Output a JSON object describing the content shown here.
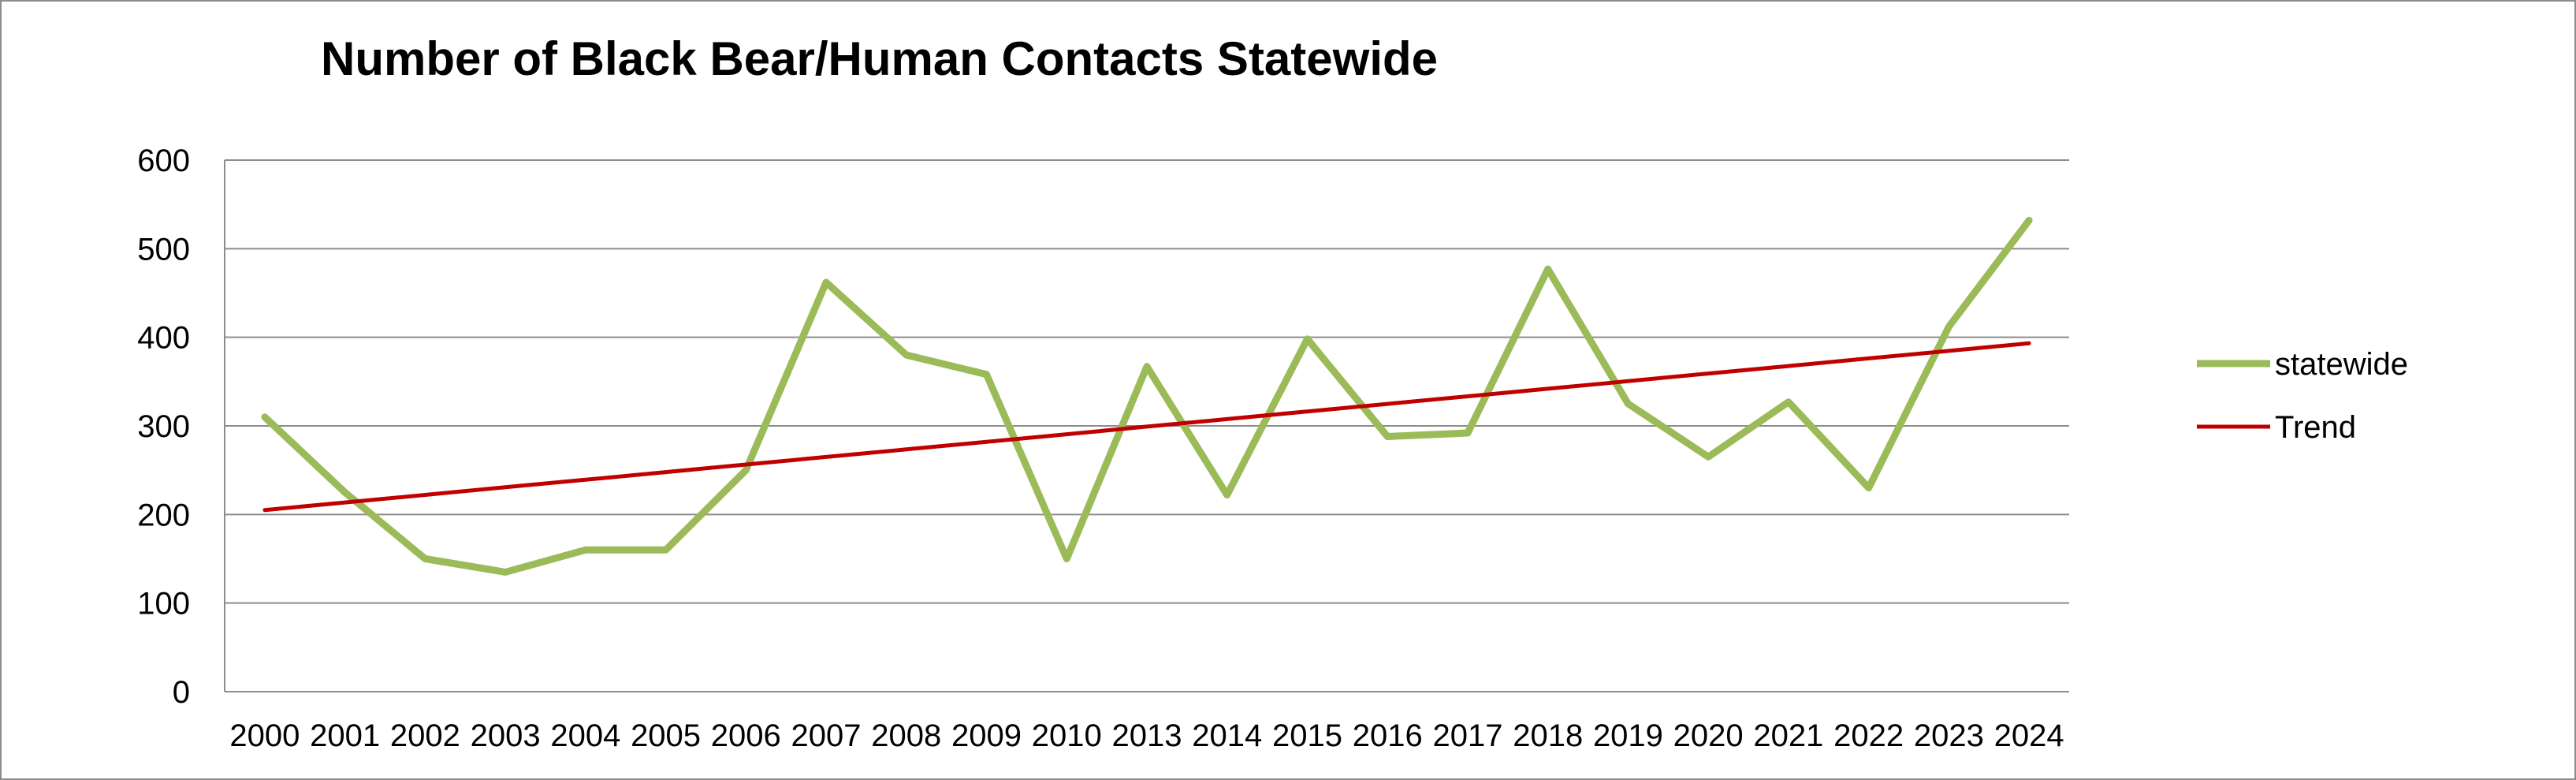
{
  "chart_data": {
    "type": "line",
    "title": "Number of Black Bear/Human Contacts Statewide",
    "xlabel": "",
    "ylabel": "",
    "categories": [
      "2000",
      "2001",
      "2002",
      "2003",
      "2004",
      "2005",
      "2006",
      "2007",
      "2008",
      "2009",
      "2010",
      "2013",
      "2014",
      "2015",
      "2016",
      "2017",
      "2018",
      "2019",
      "2020",
      "2021",
      "2022",
      "2023",
      "2024"
    ],
    "series": [
      {
        "name": "statewide",
        "color": "#9bbb59",
        "values": [
          310,
          225,
          150,
          135,
          160,
          160,
          250,
          462,
          380,
          358,
          150,
          367,
          222,
          398,
          288,
          292,
          477,
          325,
          265,
          327,
          230,
          412,
          532
        ]
      },
      {
        "name": "Trend",
        "color": "#c00000",
        "values": [
          205,
          213.6,
          222.1,
          230.7,
          239.2,
          247.8,
          256.4,
          264.9,
          273.5,
          282,
          290.6,
          299.2,
          307.7,
          316.3,
          324.8,
          333.4,
          341.9,
          350.5,
          359.1,
          367.6,
          376.2,
          384.7,
          393.3
        ]
      }
    ],
    "ylim": [
      0,
      600
    ],
    "yticks": [
      "0",
      "100",
      "200",
      "300",
      "400",
      "500",
      "600"
    ],
    "grid": true,
    "legend_position": "right"
  }
}
